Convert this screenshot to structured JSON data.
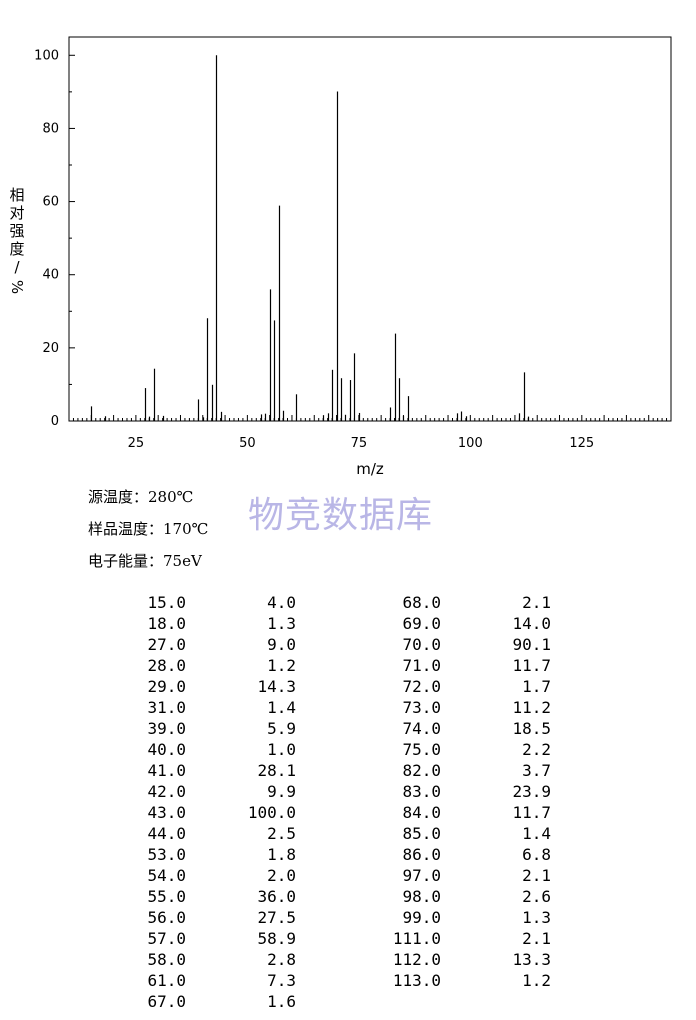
{
  "chart_data": {
    "type": "bar",
    "xlabel": "m/z",
    "ylabel_chars": [
      "相",
      "对",
      "强",
      "度",
      "/",
      "%"
    ],
    "xlim": [
      10,
      145
    ],
    "ylim": [
      0,
      105
    ],
    "xticks": [
      25,
      50,
      75,
      100,
      125
    ],
    "yticks": [
      0,
      20,
      40,
      60,
      80,
      100
    ],
    "grid": false,
    "series": [
      {
        "values": [
          [
            15.0,
            4.0
          ],
          [
            18.0,
            1.3
          ],
          [
            27.0,
            9.0
          ],
          [
            28.0,
            1.2
          ],
          [
            29.0,
            14.3
          ],
          [
            31.0,
            1.4
          ],
          [
            39.0,
            5.9
          ],
          [
            40.0,
            1.0
          ],
          [
            41.0,
            28.1
          ],
          [
            42.0,
            9.9
          ],
          [
            43.0,
            100.0
          ],
          [
            44.0,
            2.5
          ],
          [
            53.0,
            1.8
          ],
          [
            54.0,
            2.0
          ],
          [
            55.0,
            36.0
          ],
          [
            56.0,
            27.5
          ],
          [
            57.0,
            58.9
          ],
          [
            58.0,
            2.8
          ],
          [
            61.0,
            7.3
          ],
          [
            67.0,
            1.6
          ],
          [
            68.0,
            2.1
          ],
          [
            69.0,
            14.0
          ],
          [
            70.0,
            90.1
          ],
          [
            71.0,
            11.7
          ],
          [
            72.0,
            1.7
          ],
          [
            73.0,
            11.2
          ],
          [
            74.0,
            18.5
          ],
          [
            75.0,
            2.2
          ],
          [
            82.0,
            3.7
          ],
          [
            83.0,
            23.9
          ],
          [
            84.0,
            11.7
          ],
          [
            85.0,
            1.4
          ],
          [
            86.0,
            6.8
          ],
          [
            97.0,
            2.1
          ],
          [
            98.0,
            2.6
          ],
          [
            99.0,
            1.3
          ],
          [
            111.0,
            2.1
          ],
          [
            112.0,
            13.3
          ],
          [
            113.0,
            1.2
          ]
        ]
      }
    ]
  },
  "watermark": "物竞数据库",
  "conditions": [
    {
      "label": "源温度：",
      "value": "280℃"
    },
    {
      "label": "样品温度：",
      "value": "170℃"
    },
    {
      "label": "电子能量：",
      "value": "75eV"
    }
  ],
  "table": {
    "left": [
      [
        "15.0",
        "4.0"
      ],
      [
        "18.0",
        "1.3"
      ],
      [
        "27.0",
        "9.0"
      ],
      [
        "28.0",
        "1.2"
      ],
      [
        "29.0",
        "14.3"
      ],
      [
        "31.0",
        "1.4"
      ],
      [
        "39.0",
        "5.9"
      ],
      [
        "40.0",
        "1.0"
      ],
      [
        "41.0",
        "28.1"
      ],
      [
        "42.0",
        "9.9"
      ],
      [
        "43.0",
        "100.0"
      ],
      [
        "44.0",
        "2.5"
      ],
      [
        "53.0",
        "1.8"
      ],
      [
        "54.0",
        "2.0"
      ],
      [
        "55.0",
        "36.0"
      ],
      [
        "56.0",
        "27.5"
      ],
      [
        "57.0",
        "58.9"
      ],
      [
        "58.0",
        "2.8"
      ],
      [
        "61.0",
        "7.3"
      ],
      [
        "67.0",
        "1.6"
      ]
    ],
    "right": [
      [
        "68.0",
        "2.1"
      ],
      [
        "69.0",
        "14.0"
      ],
      [
        "70.0",
        "90.1"
      ],
      [
        "71.0",
        "11.7"
      ],
      [
        "72.0",
        "1.7"
      ],
      [
        "73.0",
        "11.2"
      ],
      [
        "74.0",
        "18.5"
      ],
      [
        "75.0",
        "2.2"
      ],
      [
        "82.0",
        "3.7"
      ],
      [
        "83.0",
        "23.9"
      ],
      [
        "84.0",
        "11.7"
      ],
      [
        "85.0",
        "1.4"
      ],
      [
        "86.0",
        "6.8"
      ],
      [
        "97.0",
        "2.1"
      ],
      [
        "98.0",
        "2.6"
      ],
      [
        "99.0",
        "1.3"
      ],
      [
        "111.0",
        "2.1"
      ],
      [
        "112.0",
        "13.3"
      ],
      [
        "113.0",
        "1.2"
      ]
    ]
  }
}
